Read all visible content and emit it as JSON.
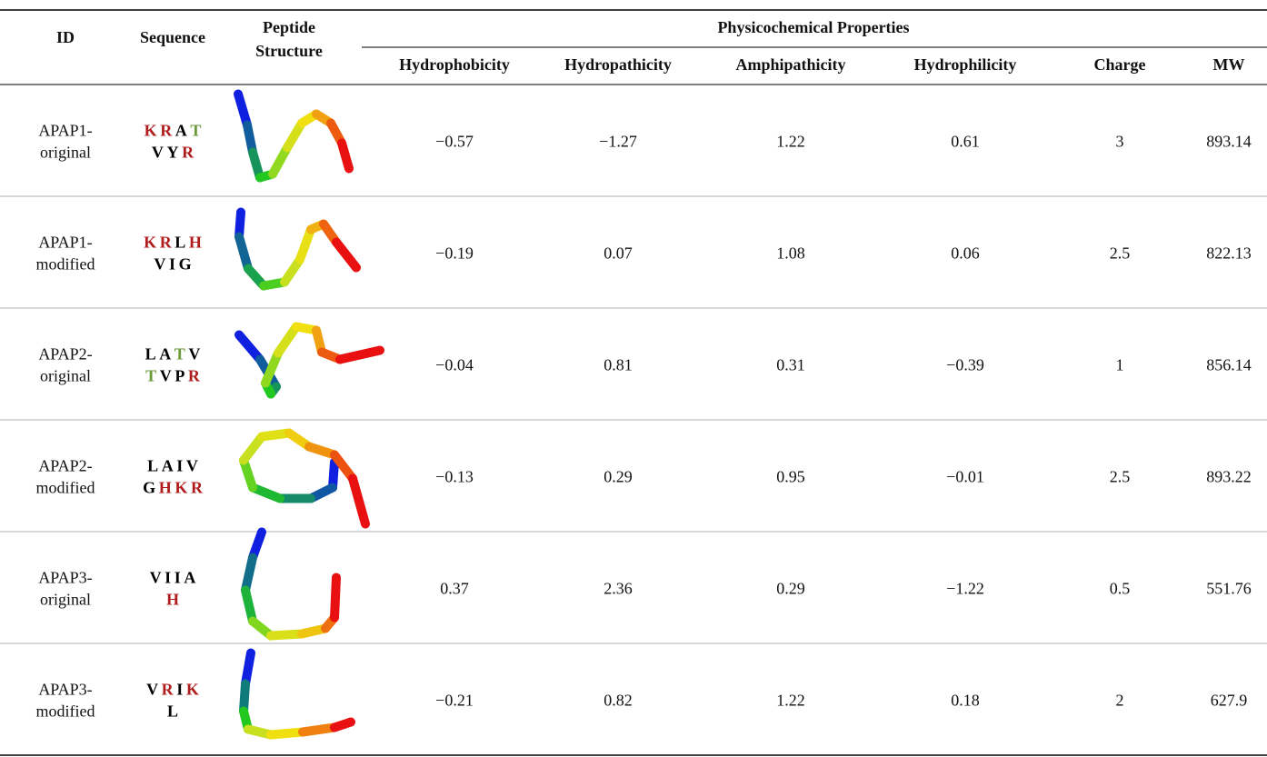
{
  "table": {
    "header": {
      "id": "ID",
      "sequence": "Sequence",
      "structure": [
        "Peptide",
        "Structure"
      ],
      "group": "Physicochemical Properties",
      "properties": [
        "Hydrophobicity",
        "Hydropathicity",
        "Amphipathicity",
        "Hydrophilicity",
        "Charge",
        "MW"
      ]
    },
    "rows": [
      {
        "id": [
          "APAP1-",
          "original"
        ],
        "sequence": [
          [
            {
              "text": "K",
              "color": "#b01c1c"
            },
            {
              "text": "R",
              "color": "#b01c1c"
            },
            {
              "text": "A",
              "color": "#000000"
            },
            {
              "text": "T",
              "color": "#6a9a3a"
            }
          ],
          [
            {
              "text": "V",
              "color": "#000000"
            },
            {
              "text": "Y",
              "color": "#000000"
            },
            {
              "text": "R",
              "color": "#b01c1c"
            }
          ]
        ],
        "properties": [
          "−0.57",
          "−1.27",
          "1.22",
          "0.61",
          "3",
          "893.14"
        ]
      },
      {
        "id": [
          "APAP1-",
          "modified"
        ],
        "sequence": [
          [
            {
              "text": "K",
              "color": "#b01c1c"
            },
            {
              "text": "R",
              "color": "#b01c1c"
            },
            {
              "text": "L",
              "color": "#000000"
            },
            {
              "text": "H",
              "color": "#b01c1c"
            }
          ],
          [
            {
              "text": "V",
              "color": "#000000"
            },
            {
              "text": "I",
              "color": "#000000"
            },
            {
              "text": "G",
              "color": "#000000"
            }
          ]
        ],
        "properties": [
          "−0.19",
          "0.07",
          "1.08",
          "0.06",
          "2.5",
          "822.13"
        ]
      },
      {
        "id": [
          "APAP2-",
          "original"
        ],
        "sequence": [
          [
            {
              "text": "L",
              "color": "#000000"
            },
            {
              "text": "A",
              "color": "#000000"
            },
            {
              "text": "T",
              "color": "#6a9a3a"
            },
            {
              "text": "V",
              "color": "#000000"
            }
          ],
          [
            {
              "text": "T",
              "color": "#6a9a3a"
            },
            {
              "text": "V",
              "color": "#000000"
            },
            {
              "text": "P",
              "color": "#000000"
            },
            {
              "text": "R",
              "color": "#b01c1c"
            }
          ]
        ],
        "properties": [
          "−0.04",
          "0.81",
          "0.31",
          "−0.39",
          "1",
          "856.14"
        ]
      },
      {
        "id": [
          "APAP2-",
          "modified"
        ],
        "sequence": [
          [
            {
              "text": "L",
              "color": "#000000"
            },
            {
              "text": "A",
              "color": "#000000"
            },
            {
              "text": "I",
              "color": "#000000"
            },
            {
              "text": "V",
              "color": "#000000"
            }
          ],
          [
            {
              "text": "G",
              "color": "#000000"
            },
            {
              "text": "H",
              "color": "#b01c1c"
            },
            {
              "text": "K",
              "color": "#b01c1c"
            },
            {
              "text": "R",
              "color": "#b01c1c"
            }
          ]
        ],
        "properties": [
          "−0.13",
          "0.29",
          "0.95",
          "−0.01",
          "2.5",
          "893.22"
        ]
      },
      {
        "id": [
          "APAP3-",
          "original"
        ],
        "sequence": [
          [
            {
              "text": "V",
              "color": "#000000"
            },
            {
              "text": "I",
              "color": "#000000"
            },
            {
              "text": "I",
              "color": "#000000"
            },
            {
              "text": "A",
              "color": "#000000"
            }
          ],
          [
            {
              "text": "H",
              "color": "#b01c1c"
            }
          ]
        ],
        "properties": [
          "0.37",
          "2.36",
          "0.29",
          "−1.22",
          "0.5",
          "551.76"
        ]
      },
      {
        "id": [
          "APAP3-",
          "modified"
        ],
        "sequence": [
          [
            {
              "text": "V",
              "color": "#000000"
            },
            {
              "text": "R",
              "color": "#b01c1c"
            },
            {
              "text": "I",
              "color": "#000000"
            },
            {
              "text": "K",
              "color": "#b01c1c"
            }
          ],
          [
            {
              "text": "L",
              "color": "#000000"
            }
          ]
        ],
        "properties": [
          "−0.21",
          "0.82",
          "1.22",
          "0.18",
          "2",
          "627.9"
        ]
      }
    ]
  }
}
